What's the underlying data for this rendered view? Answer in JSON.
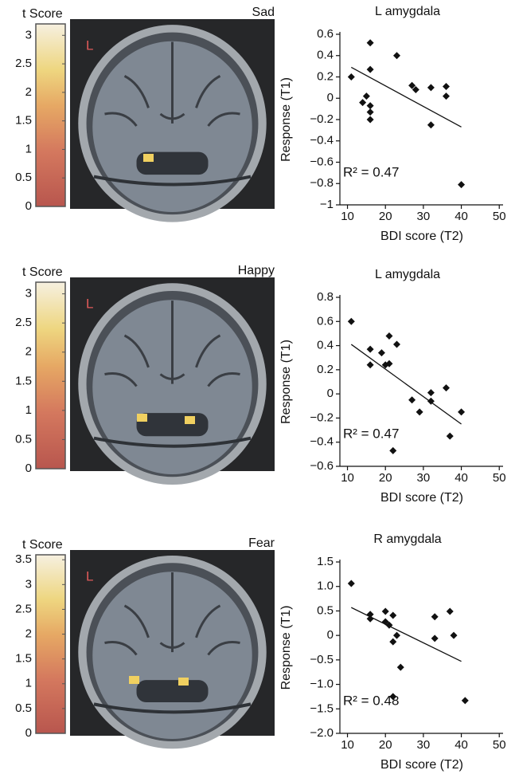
{
  "chart_data": [
    {
      "type": "colorbar",
      "title": "t Score",
      "image_label": "Sad",
      "side_label": "L",
      "lim": [
        0,
        3.2
      ],
      "ticks": [
        0,
        0.5,
        1,
        1.5,
        2,
        2.5,
        3
      ]
    },
    {
      "type": "scatter",
      "title": "L amygdala",
      "x_label": "BDI score (T2)",
      "y_label": "Response (T1)",
      "annotation": "R² = 0.47",
      "color": "#111111",
      "x": [
        11,
        16,
        16,
        23,
        14,
        15,
        16,
        16,
        16,
        27,
        28,
        32,
        32,
        36,
        36,
        40
      ],
      "values": [
        0.2,
        0.52,
        0.27,
        0.4,
        -0.04,
        0.02,
        -0.07,
        -0.13,
        -0.2,
        0.12,
        0.08,
        0.1,
        -0.25,
        0.11,
        0.02,
        -0.81
      ],
      "trendline": {
        "x": [
          11,
          40
        ],
        "values": [
          0.29,
          -0.27
        ]
      },
      "xlim": [
        8,
        51
      ],
      "ylim": [
        -1,
        0.6
      ],
      "xticks": [
        10,
        20,
        30,
        40,
        50
      ],
      "yticks": [
        0.6,
        0.4,
        0.2,
        0,
        {
          "value": -0.2,
          "label": "−0.2"
        },
        {
          "value": -0.4,
          "label": "−0.4"
        },
        {
          "value": -0.6,
          "label": "−0.6"
        },
        {
          "value": -0.8,
          "label": "−0.8"
        },
        {
          "value": -1,
          "label": "−1"
        }
      ]
    },
    {
      "type": "colorbar",
      "title": "t Score",
      "image_label": "Happy",
      "side_label": "L",
      "lim": [
        0,
        3.2
      ],
      "ticks": [
        0,
        0.5,
        1,
        1.5,
        2,
        2.5,
        3
      ]
    },
    {
      "type": "scatter",
      "title": "L amygdala",
      "x_label": "BDI score (T2)",
      "y_label": "Response (T1)",
      "annotation": "R² = 0.47",
      "color": "#111111",
      "x": [
        11,
        16,
        16,
        19,
        21,
        23,
        20,
        21,
        22,
        27,
        29,
        32,
        32,
        36,
        37,
        40
      ],
      "values": [
        0.6,
        0.37,
        0.24,
        0.34,
        0.48,
        0.41,
        0.24,
        0.25,
        -0.47,
        -0.05,
        -0.15,
        0.01,
        -0.06,
        0.05,
        -0.35,
        -0.15
      ],
      "trendline": {
        "x": [
          11,
          40
        ],
        "values": [
          0.41,
          -0.25
        ]
      },
      "xlim": [
        8,
        51
      ],
      "ylim": [
        -0.6,
        0.8
      ],
      "xticks": [
        10,
        20,
        30,
        40,
        50
      ],
      "yticks": [
        0.8,
        0.6,
        0.4,
        0.2,
        0,
        {
          "value": -0.2,
          "label": "−0.2"
        },
        {
          "value": -0.4,
          "label": "−0.4"
        },
        {
          "value": -0.6,
          "label": "−0.6"
        }
      ]
    },
    {
      "type": "colorbar",
      "title": "t Score",
      "image_label": "Fear",
      "side_label": "L",
      "lim": [
        0,
        3.6
      ],
      "ticks": [
        0,
        0.5,
        1,
        1.5,
        2,
        2.5,
        3,
        3.5
      ]
    },
    {
      "type": "scatter",
      "title": "R amygdala",
      "x_label": "BDI score (T2)",
      "y_label": "Response (T1)",
      "annotation": "R² = 0.48",
      "color": "#111111",
      "x": [
        11,
        16,
        16,
        20,
        20,
        22,
        21,
        22,
        23,
        24,
        22,
        33,
        33,
        37,
        38,
        41
      ],
      "values": [
        1.06,
        0.43,
        0.34,
        0.28,
        0.49,
        0.41,
        0.21,
        -0.13,
        0,
        -0.65,
        -1.25,
        0.38,
        -0.06,
        0.49,
        0,
        -1.33
      ],
      "trendline": {
        "x": [
          11,
          40
        ],
        "values": [
          0.57,
          -0.53
        ]
      },
      "xlim": [
        8,
        51
      ],
      "ylim": [
        -2,
        1.5
      ],
      "xticks": [
        10,
        20,
        30,
        40,
        50
      ],
      "yticks": [
        1.5,
        {
          "value": 1,
          "label": "1.0"
        },
        0.5,
        0,
        {
          "value": -0.5,
          "label": "−0.5"
        },
        {
          "value": -1,
          "label": "−1.0"
        },
        {
          "value": -1.5,
          "label": "−1.5"
        },
        {
          "value": -2,
          "label": "−2.0"
        }
      ]
    }
  ]
}
